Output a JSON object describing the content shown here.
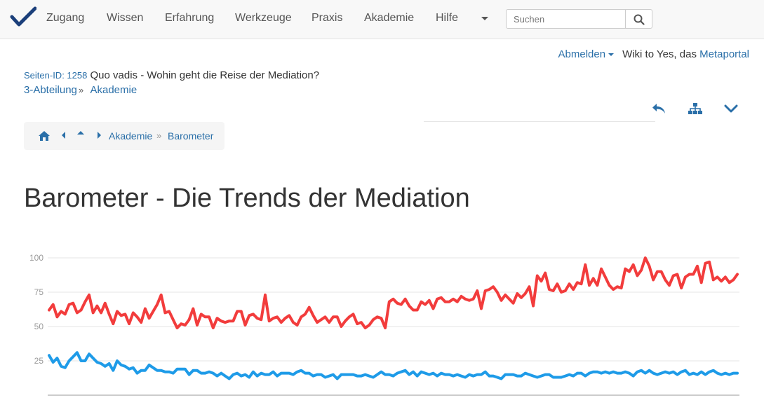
{
  "nav": {
    "items": [
      "Zugang",
      "Wissen",
      "Erfahrung",
      "Werkzeuge",
      "Praxis",
      "Akademie",
      "Hilfe"
    ],
    "search_placeholder": "Suchen"
  },
  "user": {
    "logout": "Abmelden",
    "text": "Wiki to Yes, das",
    "portal": "Metaportal"
  },
  "page": {
    "id_label": "Seiten-ID: 1258",
    "subtitle": "Quo vadis - Wohin geht die Reise der Mediation?",
    "crumb_section": "3-Abteilung",
    "crumb_sep": "»",
    "crumb_current": "Akademie",
    "title": "Barometer - Die Trends der Mediation"
  },
  "breadcrumb": {
    "items": [
      "Akademie",
      "Barometer"
    ],
    "sep": "»"
  },
  "colors": {
    "accent": "#2a6fa8",
    "series_red": "#f23c3c",
    "series_blue": "#1e9be8"
  },
  "chart_data": {
    "type": "line",
    "ylim": [
      0,
      100
    ],
    "yticks": [
      25,
      50,
      75,
      100
    ],
    "grid": true,
    "series": [
      {
        "color": "#f23c3c",
        "values": [
          62,
          66,
          57,
          61,
          59,
          66,
          67,
          60,
          62,
          68,
          73,
          60,
          65,
          60,
          67,
          59,
          52,
          61,
          58,
          59,
          52,
          60,
          57,
          53,
          63,
          56,
          61,
          66,
          73,
          60,
          61,
          55,
          49,
          52,
          51,
          55,
          63,
          51,
          59,
          57,
          57,
          49,
          56,
          54,
          53,
          54,
          54,
          61,
          61,
          51,
          58,
          59,
          56,
          55,
          73,
          54,
          56,
          57,
          53,
          56,
          58,
          53,
          51,
          57,
          59,
          64,
          58,
          53,
          55,
          57,
          53,
          57,
          57,
          50,
          54,
          57,
          59,
          52,
          53,
          49,
          51,
          55,
          57,
          56,
          49,
          68,
          70,
          67,
          66,
          70,
          65,
          62,
          62,
          68,
          66,
          69,
          63,
          70,
          71,
          68,
          68,
          70,
          68,
          72,
          70,
          69,
          70,
          76,
          63,
          76,
          77,
          79,
          75,
          69,
          73,
          70,
          67,
          74,
          71,
          74,
          79,
          65,
          87,
          83,
          89,
          77,
          76,
          81,
          75,
          76,
          81,
          77,
          82,
          81,
          95,
          80,
          85,
          80,
          92,
          86,
          80,
          77,
          79,
          78,
          92,
          90,
          95,
          87,
          91,
          100,
          94,
          84,
          90,
          90,
          84,
          80,
          87,
          88,
          78,
          86,
          88,
          88,
          94,
          82,
          96,
          97,
          84,
          86,
          83,
          86,
          82,
          84,
          88
        ]
      },
      {
        "color": "#1e9be8",
        "values": [
          29,
          24,
          27,
          21,
          20,
          25,
          28,
          31,
          25,
          25,
          30,
          27,
          24,
          23,
          21,
          23,
          18,
          25,
          22,
          21,
          19,
          20,
          16,
          18,
          18,
          22,
          20,
          18,
          18,
          17,
          17,
          16,
          19,
          19,
          19,
          15,
          18,
          18,
          16,
          16,
          17,
          16,
          14,
          16,
          14,
          12,
          15,
          16,
          14,
          15,
          13,
          17,
          14,
          16,
          15,
          15,
          17,
          14,
          16,
          16,
          16,
          15,
          17,
          18,
          16,
          16,
          14,
          15,
          15,
          13,
          14,
          15,
          12,
          15,
          15,
          15,
          15,
          14,
          14,
          15,
          14,
          13,
          15,
          17,
          15,
          15,
          14,
          16,
          17,
          18,
          15,
          17,
          14,
          17,
          16,
          15,
          16,
          14,
          16,
          15,
          15,
          14,
          15,
          14,
          13,
          15,
          14,
          15,
          15,
          17,
          14,
          14,
          13,
          12,
          15,
          15,
          15,
          14,
          14,
          16,
          15,
          14,
          13,
          14,
          15,
          15,
          13,
          13,
          13,
          14,
          15,
          14,
          16,
          16,
          14,
          16,
          17,
          17,
          16,
          17,
          16,
          17,
          16,
          16,
          17,
          16,
          14,
          17,
          18,
          16,
          18,
          16,
          15,
          16,
          17,
          16,
          17,
          15,
          17,
          18,
          15,
          16,
          15,
          17,
          15,
          17,
          18,
          16,
          15,
          16,
          15,
          16,
          16
        ]
      }
    ]
  }
}
